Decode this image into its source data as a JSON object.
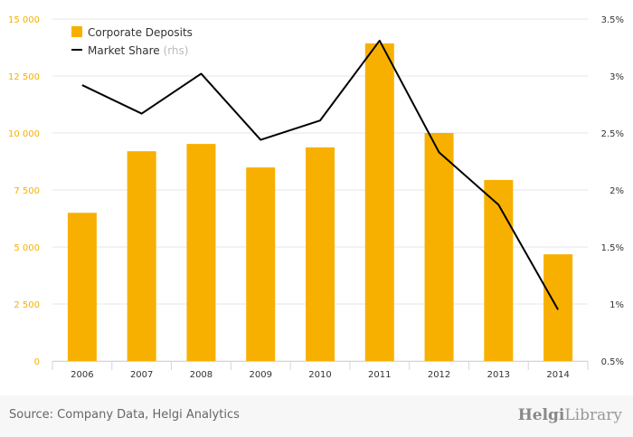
{
  "chart_data": {
    "type": "bar",
    "categories": [
      "2006",
      "2007",
      "2008",
      "2009",
      "2010",
      "2011",
      "2012",
      "2013",
      "2014"
    ],
    "series": [
      {
        "name": "Corporate Deposits",
        "type": "bar",
        "axis": "left",
        "color": "#f8b000",
        "values": [
          6500,
          9200,
          9520,
          8490,
          9370,
          13930,
          10000,
          7940,
          4680
        ]
      },
      {
        "name": "Market Share",
        "suffix": "(rhs)",
        "type": "line",
        "axis": "right",
        "color": "#000000",
        "values": [
          2.92,
          2.67,
          3.02,
          2.44,
          2.61,
          3.31,
          2.33,
          1.87,
          0.95
        ]
      }
    ],
    "y_left": {
      "range": [
        0,
        15000
      ],
      "ticks": [
        "0",
        "2 500",
        "5 000",
        "7 500",
        "10 000",
        "12 500",
        "15 000"
      ],
      "color": "#f8b000"
    },
    "y_right": {
      "range": [
        0.5,
        3.5
      ],
      "ticks": [
        "0.5%",
        "1%",
        "1.5%",
        "2%",
        "2.5%",
        "3%",
        "3.5%"
      ]
    },
    "grid": true,
    "legend_position": "top-left"
  },
  "footer": {
    "source": "Source: Company Data, Helgi Analytics",
    "logo_bold": "Helgi",
    "logo_light": "Library"
  }
}
